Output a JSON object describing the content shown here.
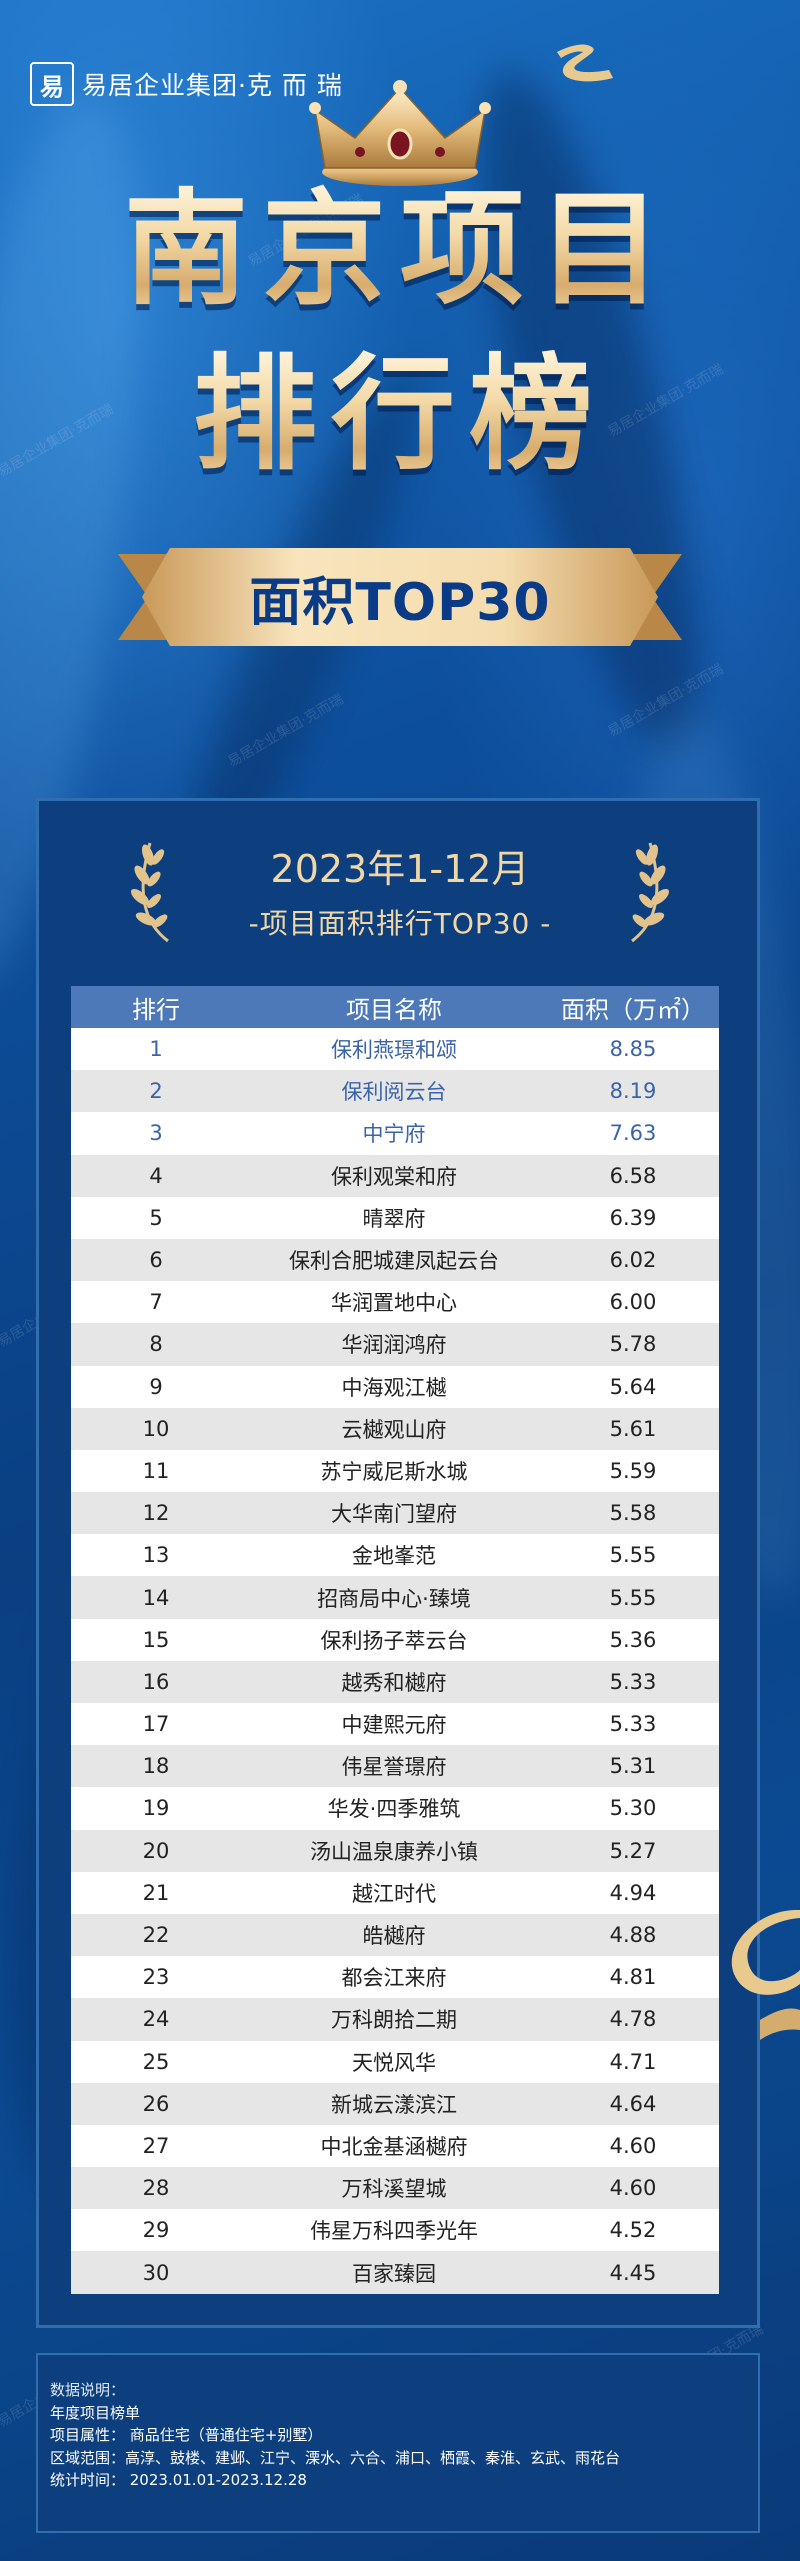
{
  "brand": {
    "logo_glyph": "易",
    "name": "易居企业集团·克 而 瑞"
  },
  "title": {
    "line1": "南京项目",
    "line2": "排行榜"
  },
  "banner": {
    "text": "面积TOP30"
  },
  "panel": {
    "period": "2023年1-12月",
    "subtitle": "-项目面积排行TOP30 -"
  },
  "watermark_text": "易居企业集团·克而瑞",
  "table": {
    "headers": [
      "排行",
      "项目名称",
      "面积（万㎡）"
    ],
    "rows": [
      {
        "rank": "1",
        "name": "保利燕璟和颂",
        "area": "8.85"
      },
      {
        "rank": "2",
        "name": "保利阅云台",
        "area": "8.19"
      },
      {
        "rank": "3",
        "name": "中宁府",
        "area": "7.63"
      },
      {
        "rank": "4",
        "name": "保利观棠和府",
        "area": "6.58"
      },
      {
        "rank": "5",
        "name": "晴翠府",
        "area": "6.39"
      },
      {
        "rank": "6",
        "name": "保利合肥城建凤起云台",
        "area": "6.02"
      },
      {
        "rank": "7",
        "name": "华润置地中心",
        "area": "6.00"
      },
      {
        "rank": "8",
        "name": "华润润鸿府",
        "area": "5.78"
      },
      {
        "rank": "9",
        "name": "中海观江樾",
        "area": "5.64"
      },
      {
        "rank": "10",
        "name": "云樾观山府",
        "area": "5.61"
      },
      {
        "rank": "11",
        "name": "苏宁威尼斯水城",
        "area": "5.59"
      },
      {
        "rank": "12",
        "name": "大华南门望府",
        "area": "5.58"
      },
      {
        "rank": "13",
        "name": "金地峯范",
        "area": "5.55"
      },
      {
        "rank": "14",
        "name": "招商局中心·臻境",
        "area": "5.55"
      },
      {
        "rank": "15",
        "name": "保利扬子萃云台",
        "area": "5.36"
      },
      {
        "rank": "16",
        "name": "越秀和樾府",
        "area": "5.33"
      },
      {
        "rank": "17",
        "name": "中建熙元府",
        "area": "5.33"
      },
      {
        "rank": "18",
        "name": "伟星誉璟府",
        "area": "5.31"
      },
      {
        "rank": "19",
        "name": "华发·四季雅筑",
        "area": "5.30"
      },
      {
        "rank": "20",
        "name": "汤山温泉康养小镇",
        "area": "5.27"
      },
      {
        "rank": "21",
        "name": "越江时代",
        "area": "4.94"
      },
      {
        "rank": "22",
        "name": "皓樾府",
        "area": "4.88"
      },
      {
        "rank": "23",
        "name": "都会江来府",
        "area": "4.81"
      },
      {
        "rank": "24",
        "name": "万科朗拾二期",
        "area": "4.78"
      },
      {
        "rank": "25",
        "name": "天悦风华",
        "area": "4.71"
      },
      {
        "rank": "26",
        "name": "新城云漾滨江",
        "area": "4.64"
      },
      {
        "rank": "27",
        "name": "中北金基涵樾府",
        "area": "4.60"
      },
      {
        "rank": "28",
        "name": "万科溪望城",
        "area": "4.60"
      },
      {
        "rank": "29",
        "name": "伟星万科四季光年",
        "area": "4.52"
      },
      {
        "rank": "30",
        "name": "百家臻园",
        "area": "4.45"
      }
    ]
  },
  "notes": {
    "heading": "数据说明：",
    "line1": "年度项目榜单",
    "line2": "项目属性：  商品住宅（普通住宅+别墅）",
    "line3": "区域范围：高淳、鼓楼、建邺、江宁、溧水、六合、浦口、栖霞、秦淮、玄武、雨花台",
    "line4": "统计时间：  2023.01.01-2023.12.28"
  },
  "colors": {
    "gold": "#f1d7a6",
    "navy": "#0d3f7f",
    "header_blue": "#4d79b8",
    "top3_text": "#3a63a8"
  }
}
